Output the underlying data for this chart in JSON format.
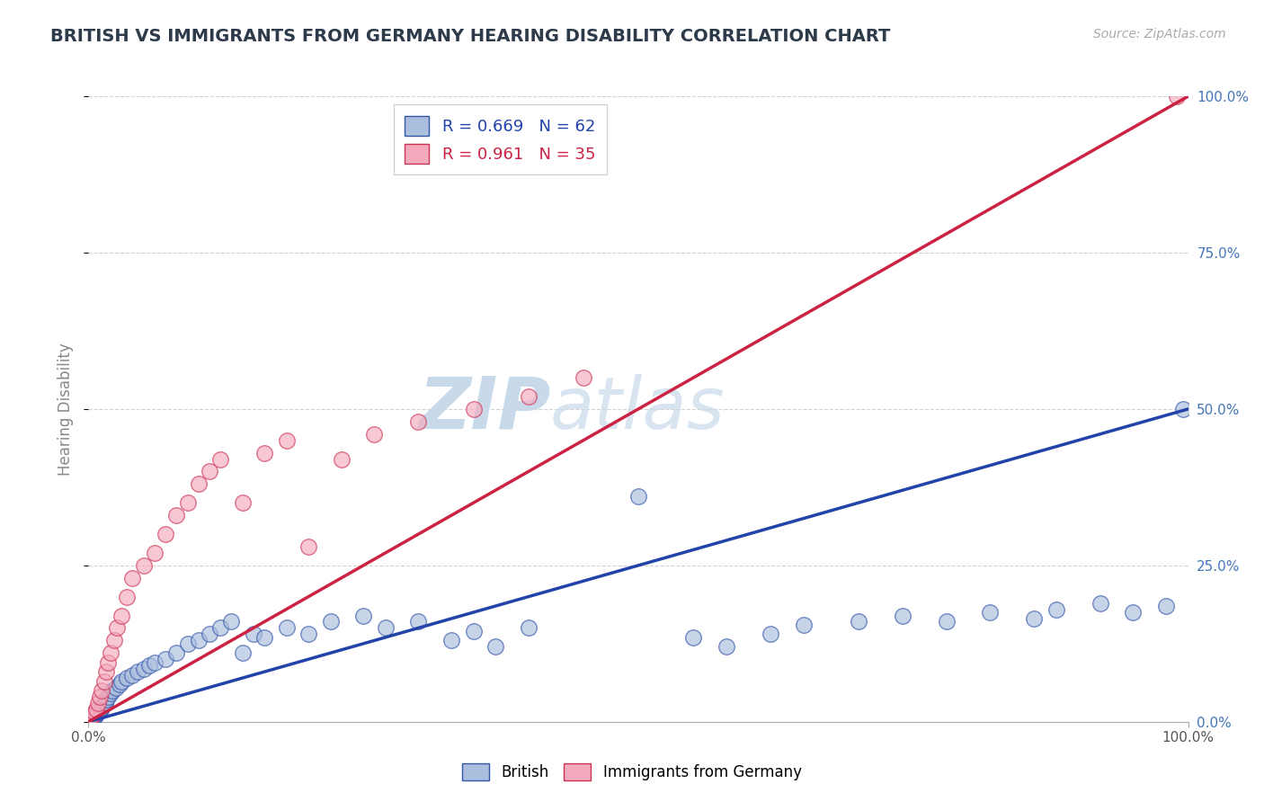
{
  "title": "BRITISH VS IMMIGRANTS FROM GERMANY HEARING DISABILITY CORRELATION CHART",
  "source_text": "Source: ZipAtlas.com",
  "ylabel": "Hearing Disability",
  "xlim": [
    0,
    100
  ],
  "ylim": [
    0,
    100
  ],
  "xtick_positions": [
    0,
    100
  ],
  "xtick_labels": [
    "0.0%",
    "100.0%"
  ],
  "ytick_positions": [
    0,
    25,
    50,
    75,
    100
  ],
  "ytick_labels": [
    "0.0%",
    "25.0%",
    "50.0%",
    "75.0%",
    "100.0%"
  ],
  "title_color": "#2d3a4a",
  "title_fontsize": 14,
  "axis_label_color": "#888888",
  "tick_label_color": "#555555",
  "yright_label_color": "#4477bb",
  "background_color": "#ffffff",
  "grid_color": "#cccccc",
  "watermark_text": "ZIPatlas",
  "watermark_color": "#ccddef",
  "blue_face_color": "#aabedd",
  "blue_edge_color": "#3355aa",
  "pink_face_color": "#f4aabc",
  "pink_edge_color": "#cc3355",
  "blue_line_color": "#2244aa",
  "pink_line_color": "#cc2244",
  "legend_R_blue": "0.669",
  "legend_N_blue": "62",
  "legend_R_pink": "0.961",
  "legend_N_pink": "35",
  "blue_line_x": [
    0,
    100
  ],
  "blue_line_y": [
    0,
    50
  ],
  "pink_line_x": [
    0,
    100
  ],
  "pink_line_y": [
    0,
    100
  ],
  "blue_scatter_x": [
    0.2,
    0.3,
    0.4,
    0.5,
    0.6,
    0.7,
    0.8,
    0.9,
    1.0,
    1.1,
    1.2,
    1.3,
    1.4,
    1.5,
    1.6,
    1.8,
    2.0,
    2.2,
    2.5,
    2.8,
    3.0,
    3.5,
    4.0,
    4.5,
    5.0,
    5.5,
    6.0,
    7.0,
    8.0,
    9.0,
    10.0,
    11.0,
    12.0,
    13.0,
    14.0,
    15.0,
    16.0,
    18.0,
    20.0,
    22.0,
    25.0,
    27.0,
    30.0,
    33.0,
    35.0,
    37.0,
    40.0,
    50.0,
    55.0,
    58.0,
    62.0,
    65.0,
    70.0,
    74.0,
    78.0,
    82.0,
    86.0,
    88.0,
    92.0,
    95.0,
    98.0,
    99.5
  ],
  "blue_scatter_y": [
    0.3,
    0.5,
    0.7,
    0.9,
    1.0,
    1.2,
    1.4,
    1.6,
    1.8,
    2.0,
    2.2,
    2.5,
    2.8,
    3.0,
    3.5,
    4.0,
    4.5,
    5.0,
    5.5,
    6.0,
    6.5,
    7.0,
    7.5,
    8.0,
    8.5,
    9.0,
    9.5,
    10.0,
    11.0,
    12.5,
    13.0,
    14.0,
    15.0,
    16.0,
    11.0,
    14.0,
    13.5,
    15.0,
    14.0,
    16.0,
    17.0,
    15.0,
    16.0,
    13.0,
    14.5,
    12.0,
    15.0,
    36.0,
    13.5,
    12.0,
    14.0,
    15.5,
    16.0,
    17.0,
    16.0,
    17.5,
    16.5,
    18.0,
    19.0,
    17.5,
    18.5,
    50.0
  ],
  "pink_scatter_x": [
    0.2,
    0.3,
    0.5,
    0.7,
    0.9,
    1.0,
    1.2,
    1.4,
    1.6,
    1.8,
    2.0,
    2.3,
    2.6,
    3.0,
    3.5,
    4.0,
    5.0,
    6.0,
    7.0,
    8.0,
    9.0,
    10.0,
    11.0,
    12.0,
    14.0,
    16.0,
    18.0,
    20.0,
    23.0,
    26.0,
    30.0,
    35.0,
    40.0,
    45.0,
    99.0
  ],
  "pink_scatter_y": [
    0.5,
    1.0,
    1.5,
    2.0,
    3.0,
    4.0,
    5.0,
    6.5,
    8.0,
    9.5,
    11.0,
    13.0,
    15.0,
    17.0,
    20.0,
    23.0,
    25.0,
    27.0,
    30.0,
    33.0,
    35.0,
    38.0,
    40.0,
    42.0,
    35.0,
    43.0,
    45.0,
    28.0,
    42.0,
    46.0,
    48.0,
    50.0,
    52.0,
    55.0,
    100.0
  ]
}
